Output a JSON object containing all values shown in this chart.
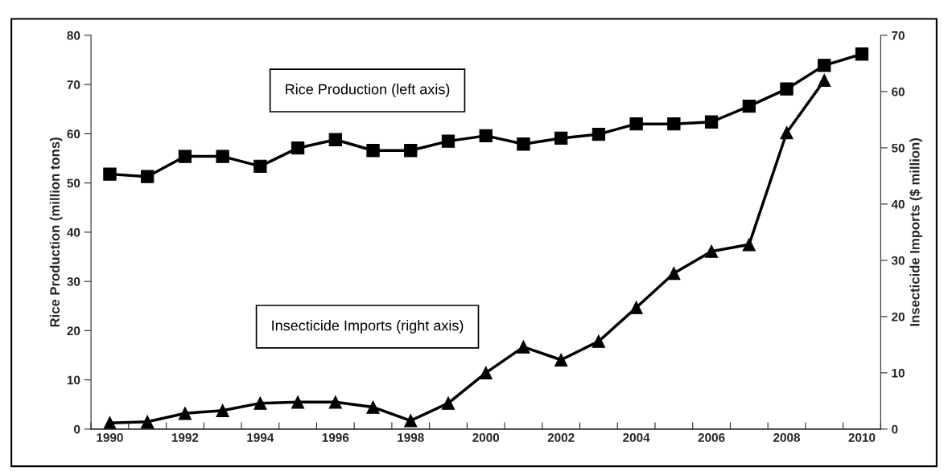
{
  "chart_data": {
    "type": "line",
    "categories": [
      "1990",
      null,
      "1992",
      null,
      "1994",
      null,
      "1996",
      null,
      "1998",
      null,
      "2000",
      null,
      "2002",
      null,
      "2004",
      null,
      "2006",
      null,
      "2008",
      null,
      "2010"
    ],
    "ylabel": "Rice Production (million tons)",
    "y2label": "Insecticide Imports ($ million)",
    "ylim": [
      0,
      80
    ],
    "yticks": [
      0,
      10,
      20,
      30,
      40,
      50,
      60,
      70,
      80
    ],
    "y2lim": [
      0,
      70
    ],
    "y2ticks": [
      0,
      10,
      20,
      30,
      40,
      50,
      60,
      70
    ],
    "grid": false,
    "legend": false,
    "line_style": "solid",
    "series": [
      {
        "name": "Rice Production (left axis)",
        "color": "#000000",
        "marker": "square",
        "values": [
          51.8,
          51.3,
          55.4,
          55.4,
          53.4,
          57.1,
          58.8,
          56.6,
          56.6,
          58.5,
          59.6,
          57.9,
          59.1,
          59.9,
          62.0,
          62.0,
          62.4,
          65.6,
          69.1,
          73.9,
          76.2
        ]
      },
      {
        "name": "Insecticide Imports (right axis)",
        "color": "#000000",
        "marker": "triangle",
        "axis": "y2",
        "values": [
          1.1,
          1.3,
          2.8,
          3.3,
          4.6,
          4.8,
          4.8,
          3.9,
          1.5,
          4.6,
          10.0,
          14.6,
          12.3,
          15.6,
          21.6,
          27.7,
          31.6,
          32.8,
          52.7,
          62.0,
          null
        ]
      }
    ]
  }
}
